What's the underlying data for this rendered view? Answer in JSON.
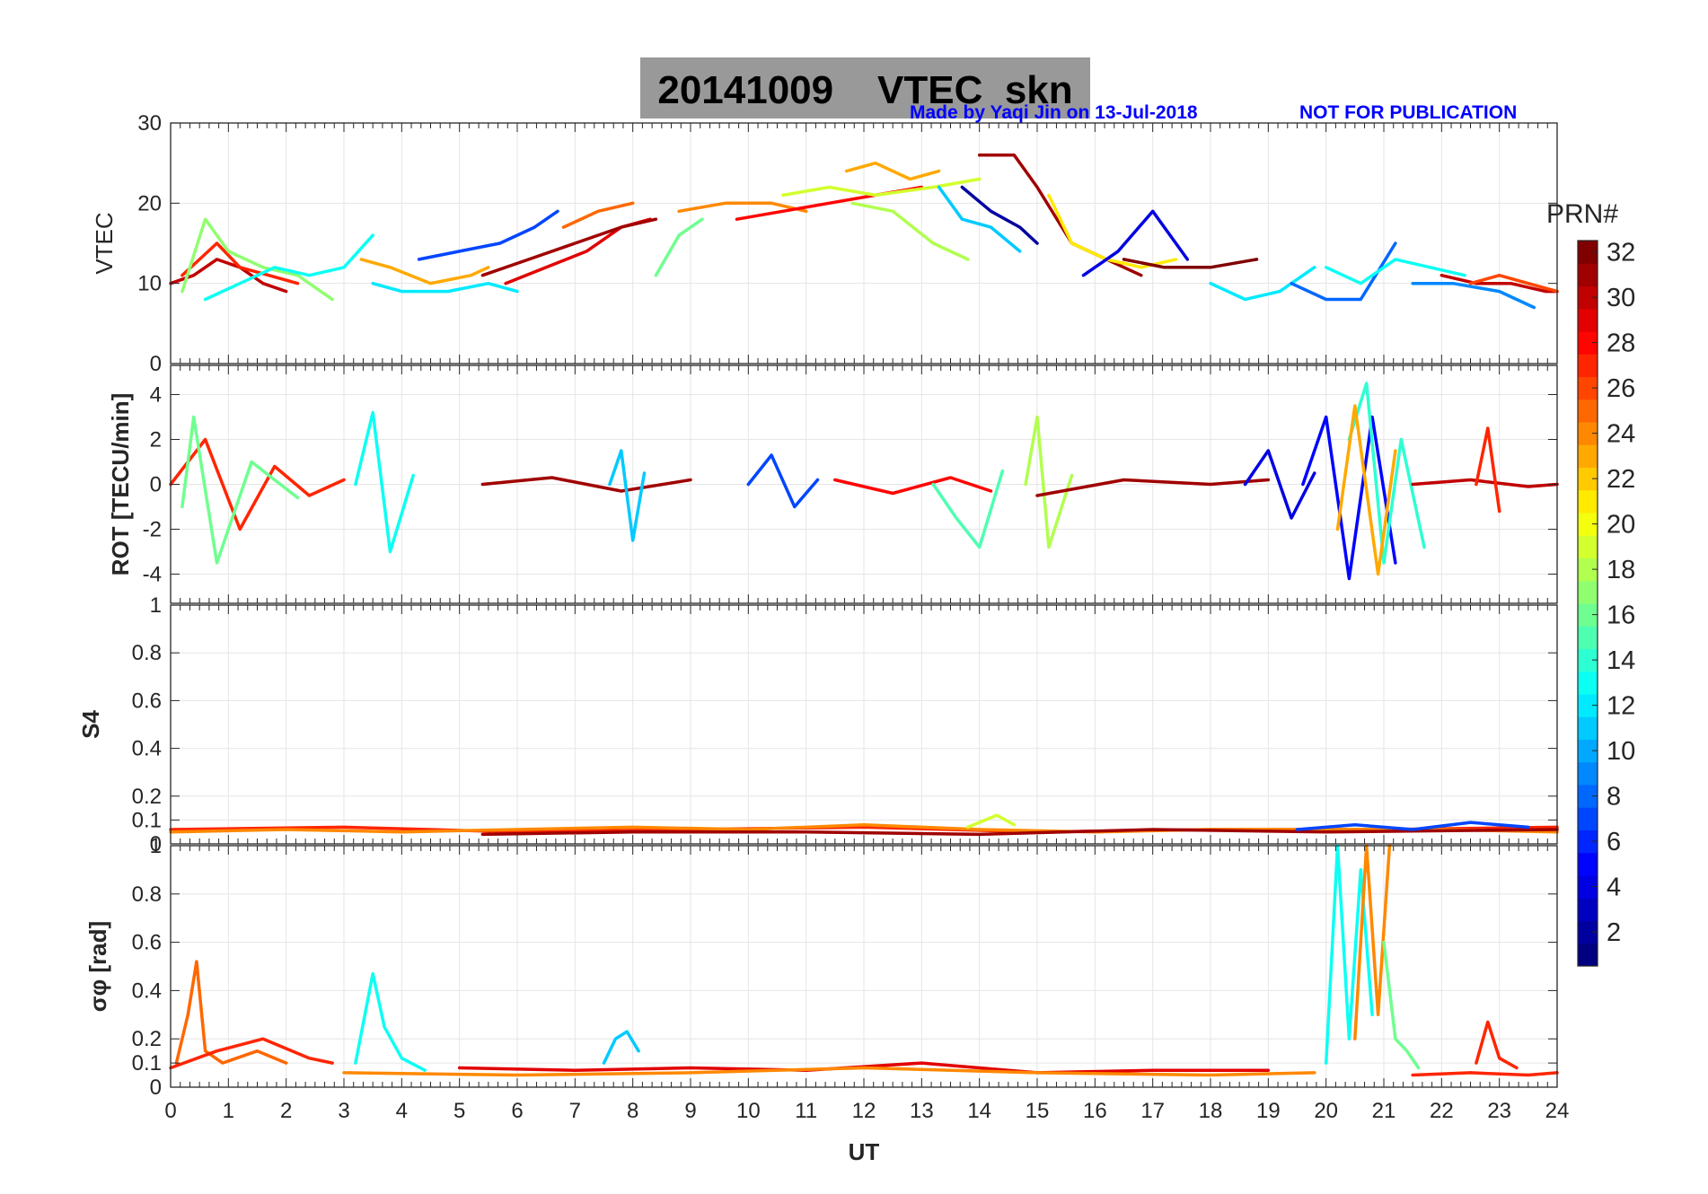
{
  "header": {
    "title": "20141009    VTEC  skn",
    "credit": "Made by Yaqi Jin on 13-Jul-2018",
    "notice": "NOT FOR PUBLICATION",
    "title_bg": "#999999",
    "note_color": "#0000ff"
  },
  "colorbar": {
    "title": "PRN#",
    "colormap": "jet",
    "range": [
      1,
      32
    ],
    "ticks": [
      "2",
      "4",
      "6",
      "8",
      "10",
      "12",
      "14",
      "16",
      "18",
      "20",
      "22",
      "24",
      "26",
      "28",
      "30",
      "32"
    ]
  },
  "chart_data": [
    {
      "id": "vtec",
      "type": "line",
      "ylabel": "VTEC",
      "ylim": [
        0,
        30
      ],
      "yticks": [
        "0",
        "10",
        "20",
        "30"
      ],
      "xlim": [
        0,
        24
      ],
      "grid": true,
      "series": [
        {
          "prn": 30,
          "x": [
            0.0,
            0.4,
            0.8,
            1.2,
            1.6,
            2.0
          ],
          "y": [
            10,
            11,
            13,
            12,
            10,
            9
          ]
        },
        {
          "prn": 27,
          "x": [
            0.2,
            0.5,
            0.8,
            1.2,
            1.7,
            2.2
          ],
          "y": [
            11,
            13,
            15,
            12,
            11,
            10
          ]
        },
        {
          "prn": 17,
          "x": [
            0.2,
            0.6,
            1.0,
            1.6,
            2.2,
            2.8
          ],
          "y": [
            9,
            18,
            14,
            12,
            11,
            8
          ]
        },
        {
          "prn": 13,
          "x": [
            0.6,
            1.2,
            1.8,
            2.4,
            3.0,
            3.5
          ],
          "y": [
            8,
            10,
            12,
            11,
            12,
            16
          ]
        },
        {
          "prn": 23,
          "x": [
            3.3,
            3.8,
            4.5,
            5.2,
            5.5
          ],
          "y": [
            13,
            12,
            10,
            11,
            12
          ]
        },
        {
          "prn": 12,
          "x": [
            3.5,
            4.0,
            4.8,
            5.5,
            6.0
          ],
          "y": [
            10,
            9,
            9,
            10,
            9
          ]
        },
        {
          "prn": 7,
          "x": [
            4.3,
            5.0,
            5.7,
            6.3,
            6.7
          ],
          "y": [
            13,
            14,
            15,
            17,
            19
          ]
        },
        {
          "prn": 29,
          "x": [
            5.8,
            6.5,
            7.2,
            7.8,
            8.3
          ],
          "y": [
            10,
            12,
            14,
            17,
            18
          ]
        },
        {
          "prn": 31,
          "x": [
            5.4,
            6.2,
            7.0,
            7.8,
            8.4
          ],
          "y": [
            11,
            13,
            15,
            17,
            18
          ]
        },
        {
          "prn": 25,
          "x": [
            6.8,
            7.4,
            8.0
          ],
          "y": [
            17,
            19,
            20
          ]
        },
        {
          "prn": 16,
          "x": [
            8.4,
            8.8,
            9.2
          ],
          "y": [
            11,
            16,
            18
          ]
        },
        {
          "prn": 24,
          "x": [
            8.8,
            9.6,
            10.4,
            11.0
          ],
          "y": [
            19,
            20,
            20,
            19
          ]
        },
        {
          "prn": 28,
          "x": [
            9.8,
            10.6,
            11.4,
            12.2,
            13.0
          ],
          "y": [
            18,
            19,
            20,
            21,
            22
          ]
        },
        {
          "prn": 19,
          "x": [
            10.6,
            11.4,
            12.2,
            13.2,
            14.0
          ],
          "y": [
            21,
            22,
            21,
            22,
            23
          ]
        },
        {
          "prn": 23,
          "x": [
            11.7,
            12.2,
            12.8,
            13.3
          ],
          "y": [
            24,
            25,
            23,
            24
          ]
        },
        {
          "prn": 18,
          "x": [
            11.8,
            12.5,
            13.2,
            13.8
          ],
          "y": [
            20,
            19,
            15,
            13
          ]
        },
        {
          "prn": 2,
          "x": [
            13.7,
            14.2,
            14.7,
            15.0
          ],
          "y": [
            22,
            19,
            17,
            15
          ]
        },
        {
          "prn": 11,
          "x": [
            13.3,
            13.7,
            14.2,
            14.7
          ],
          "y": [
            22,
            18,
            17,
            14
          ]
        },
        {
          "prn": 31,
          "x": [
            14.0,
            14.6,
            15.0,
            15.6,
            16.2,
            16.8
          ],
          "y": [
            26,
            26,
            22,
            15,
            13,
            11
          ]
        },
        {
          "prn": 21,
          "x": [
            15.2,
            15.6,
            16.2,
            16.8,
            17.4
          ],
          "y": [
            21,
            15,
            13,
            12,
            13
          ]
        },
        {
          "prn": 4,
          "x": [
            15.8,
            16.4,
            17.0,
            17.6
          ],
          "y": [
            11,
            14,
            19,
            13
          ]
        },
        {
          "prn": 32,
          "x": [
            16.5,
            17.2,
            18.0,
            18.8
          ],
          "y": [
            13,
            12,
            12,
            13
          ]
        },
        {
          "prn": 12,
          "x": [
            18.0,
            18.6,
            19.2,
            19.8
          ],
          "y": [
            10,
            8,
            9,
            12
          ]
        },
        {
          "prn": 8,
          "x": [
            19.4,
            20.0,
            20.6,
            21.2
          ],
          "y": [
            10,
            8,
            8,
            15
          ]
        },
        {
          "prn": 13,
          "x": [
            20.0,
            20.6,
            21.2,
            21.8,
            22.4
          ],
          "y": [
            12,
            10,
            13,
            12,
            11
          ]
        },
        {
          "prn": 9,
          "x": [
            21.5,
            22.2,
            23.0,
            23.6
          ],
          "y": [
            10,
            10,
            9,
            7
          ]
        },
        {
          "prn": 30,
          "x": [
            22.0,
            22.6,
            23.2,
            23.8,
            24.0
          ],
          "y": [
            11,
            10,
            10,
            9,
            9
          ]
        },
        {
          "prn": 26,
          "x": [
            22.5,
            23.0,
            23.5,
            24.0
          ],
          "y": [
            10,
            11,
            10,
            9
          ]
        }
      ]
    },
    {
      "id": "rot",
      "type": "line",
      "ylabel": "ROT [TECU/min]",
      "ylim": [
        -5.3,
        5.3
      ],
      "yticks": [
        "-4",
        "-2",
        "0",
        "2",
        "4"
      ],
      "xlim": [
        0,
        24
      ],
      "grid": true,
      "series": [
        {
          "prn": 27,
          "x": [
            0.0,
            0.6,
            1.2,
            1.8,
            2.4,
            3.0
          ],
          "y": [
            0.0,
            2.0,
            -2.0,
            0.8,
            -0.5,
            0.2
          ]
        },
        {
          "prn": 16,
          "x": [
            0.2,
            0.4,
            0.8,
            1.4,
            2.2
          ],
          "y": [
            -1.0,
            3.0,
            -3.5,
            1.0,
            -0.6
          ]
        },
        {
          "prn": 13,
          "x": [
            3.2,
            3.5,
            3.8,
            4.2
          ],
          "y": [
            0.0,
            3.2,
            -3.0,
            0.4
          ]
        },
        {
          "prn": 31,
          "x": [
            5.4,
            6.6,
            7.8,
            9.0
          ],
          "y": [
            0.0,
            0.3,
            -0.3,
            0.2
          ]
        },
        {
          "prn": 11,
          "x": [
            7.6,
            7.8,
            8.0,
            8.2
          ],
          "y": [
            0.0,
            1.5,
            -2.5,
            0.5
          ]
        },
        {
          "prn": 7,
          "x": [
            10.0,
            10.4,
            10.8,
            11.2
          ],
          "y": [
            0.0,
            1.3,
            -1.0,
            0.2
          ]
        },
        {
          "prn": 28,
          "x": [
            11.5,
            12.5,
            13.5,
            14.2
          ],
          "y": [
            0.2,
            -0.4,
            0.3,
            -0.3
          ]
        },
        {
          "prn": 15,
          "x": [
            13.2,
            13.6,
            14.0,
            14.4
          ],
          "y": [
            0.0,
            -1.5,
            -2.8,
            0.6
          ]
        },
        {
          "prn": 18,
          "x": [
            14.8,
            15.0,
            15.2,
            15.6
          ],
          "y": [
            0.0,
            3.0,
            -2.8,
            0.4
          ]
        },
        {
          "prn": 31,
          "x": [
            15.0,
            16.5,
            18.0,
            19.0
          ],
          "y": [
            -0.5,
            0.2,
            0.0,
            0.2
          ]
        },
        {
          "prn": 4,
          "x": [
            18.6,
            19.0,
            19.4,
            19.8
          ],
          "y": [
            0.0,
            1.5,
            -1.5,
            0.5
          ]
        },
        {
          "prn": 5,
          "x": [
            19.6,
            20.0,
            20.4,
            20.8,
            21.2
          ],
          "y": [
            0.0,
            3.0,
            -4.2,
            3.0,
            -3.5
          ]
        },
        {
          "prn": 14,
          "x": [
            20.4,
            20.7,
            21.0,
            21.3,
            21.7
          ],
          "y": [
            2.0,
            4.5,
            -3.5,
            2.0,
            -2.8
          ]
        },
        {
          "prn": 23,
          "x": [
            20.2,
            20.5,
            20.9,
            21.2
          ],
          "y": [
            -2.0,
            3.5,
            -4.0,
            1.5
          ]
        },
        {
          "prn": 30,
          "x": [
            21.5,
            22.5,
            23.5,
            24.0
          ],
          "y": [
            0.0,
            0.2,
            -0.1,
            0.0
          ]
        },
        {
          "prn": 27,
          "x": [
            22.6,
            22.8,
            23.0
          ],
          "y": [
            0.0,
            2.5,
            -1.2
          ]
        }
      ]
    },
    {
      "id": "s4",
      "type": "line",
      "ylabel": "S4",
      "ylim": [
        0,
        1
      ],
      "yticks": [
        "0",
        "0.1",
        "0.2",
        "0.4",
        "0.6",
        "0.8",
        "1"
      ],
      "xlim": [
        0,
        24
      ],
      "grid": true,
      "series": [
        {
          "prn": 27,
          "x": [
            0,
            3,
            6,
            9,
            12,
            15,
            18,
            21,
            24
          ],
          "y": [
            0.06,
            0.07,
            0.05,
            0.06,
            0.07,
            0.05,
            0.06,
            0.06,
            0.07
          ]
        },
        {
          "prn": 24,
          "x": [
            0,
            2,
            4,
            6,
            8,
            10,
            12,
            14,
            16,
            18,
            20,
            22,
            24
          ],
          "y": [
            0.05,
            0.06,
            0.05,
            0.06,
            0.07,
            0.06,
            0.08,
            0.06,
            0.05,
            0.06,
            0.06,
            0.06,
            0.05
          ]
        },
        {
          "prn": 31,
          "x": [
            5.4,
            8,
            11,
            14,
            17,
            20,
            24
          ],
          "y": [
            0.04,
            0.05,
            0.05,
            0.04,
            0.06,
            0.05,
            0.06
          ]
        },
        {
          "prn": 19,
          "x": [
            13.8,
            14.3,
            14.6
          ],
          "y": [
            0.07,
            0.12,
            0.08
          ]
        },
        {
          "prn": 7,
          "x": [
            19.5,
            20.5,
            21.5,
            22.5,
            23.5
          ],
          "y": [
            0.06,
            0.08,
            0.06,
            0.09,
            0.07
          ]
        }
      ]
    },
    {
      "id": "sigphi",
      "type": "line",
      "ylabel": "σφ [rad]",
      "ylim": [
        0,
        1
      ],
      "yticks": [
        "0",
        "0.1",
        "0.2",
        "0.4",
        "0.6",
        "0.8",
        "1"
      ],
      "xlim": [
        0,
        24
      ],
      "grid": true,
      "series": [
        {
          "prn": 25,
          "x": [
            0.1,
            0.3,
            0.45,
            0.6,
            0.9,
            1.5,
            2.0
          ],
          "y": [
            0.1,
            0.3,
            0.52,
            0.15,
            0.1,
            0.15,
            0.1
          ]
        },
        {
          "prn": 27,
          "x": [
            0.0,
            0.8,
            1.6,
            2.4,
            2.8
          ],
          "y": [
            0.08,
            0.15,
            0.2,
            0.12,
            0.1
          ]
        },
        {
          "prn": 13,
          "x": [
            3.2,
            3.5,
            3.7,
            4.0,
            4.4
          ],
          "y": [
            0.1,
            0.47,
            0.25,
            0.12,
            0.07
          ]
        },
        {
          "prn": 11,
          "x": [
            7.5,
            7.7,
            7.9,
            8.1
          ],
          "y": [
            0.1,
            0.2,
            0.23,
            0.15
          ]
        },
        {
          "prn": 29,
          "x": [
            5.0,
            7.0,
            9.0,
            11.0,
            13.0,
            15.0,
            17.0,
            19.0
          ],
          "y": [
            0.08,
            0.07,
            0.08,
            0.07,
            0.1,
            0.06,
            0.07,
            0.07
          ]
        },
        {
          "prn": 24,
          "x": [
            3.0,
            6.0,
            9.0,
            12.0,
            15.0,
            18.0,
            19.8
          ],
          "y": [
            0.06,
            0.05,
            0.06,
            0.08,
            0.06,
            0.05,
            0.06
          ]
        },
        {
          "prn": 13,
          "x": [
            20.0,
            20.2,
            20.4,
            20.6,
            20.8
          ],
          "y": [
            0.1,
            1.0,
            0.2,
            0.9,
            0.3
          ]
        },
        {
          "prn": 24,
          "x": [
            20.5,
            20.7,
            20.9,
            21.1
          ],
          "y": [
            0.2,
            1.0,
            0.3,
            1.0
          ]
        },
        {
          "prn": 16,
          "x": [
            21.0,
            21.2,
            21.4,
            21.6
          ],
          "y": [
            0.6,
            0.2,
            0.15,
            0.08
          ]
        },
        {
          "prn": 27,
          "x": [
            22.6,
            22.8,
            23.0,
            23.3
          ],
          "y": [
            0.1,
            0.27,
            0.12,
            0.08
          ]
        },
        {
          "prn": 27,
          "x": [
            21.5,
            22.5,
            23.5,
            24.0
          ],
          "y": [
            0.05,
            0.06,
            0.05,
            0.06
          ]
        }
      ]
    }
  ],
  "xaxis": {
    "label": "UT",
    "ticks": [
      "0",
      "1",
      "2",
      "3",
      "4",
      "5",
      "6",
      "7",
      "8",
      "9",
      "10",
      "11",
      "12",
      "13",
      "14",
      "15",
      "16",
      "17",
      "18",
      "19",
      "20",
      "21",
      "22",
      "23",
      "24"
    ]
  }
}
